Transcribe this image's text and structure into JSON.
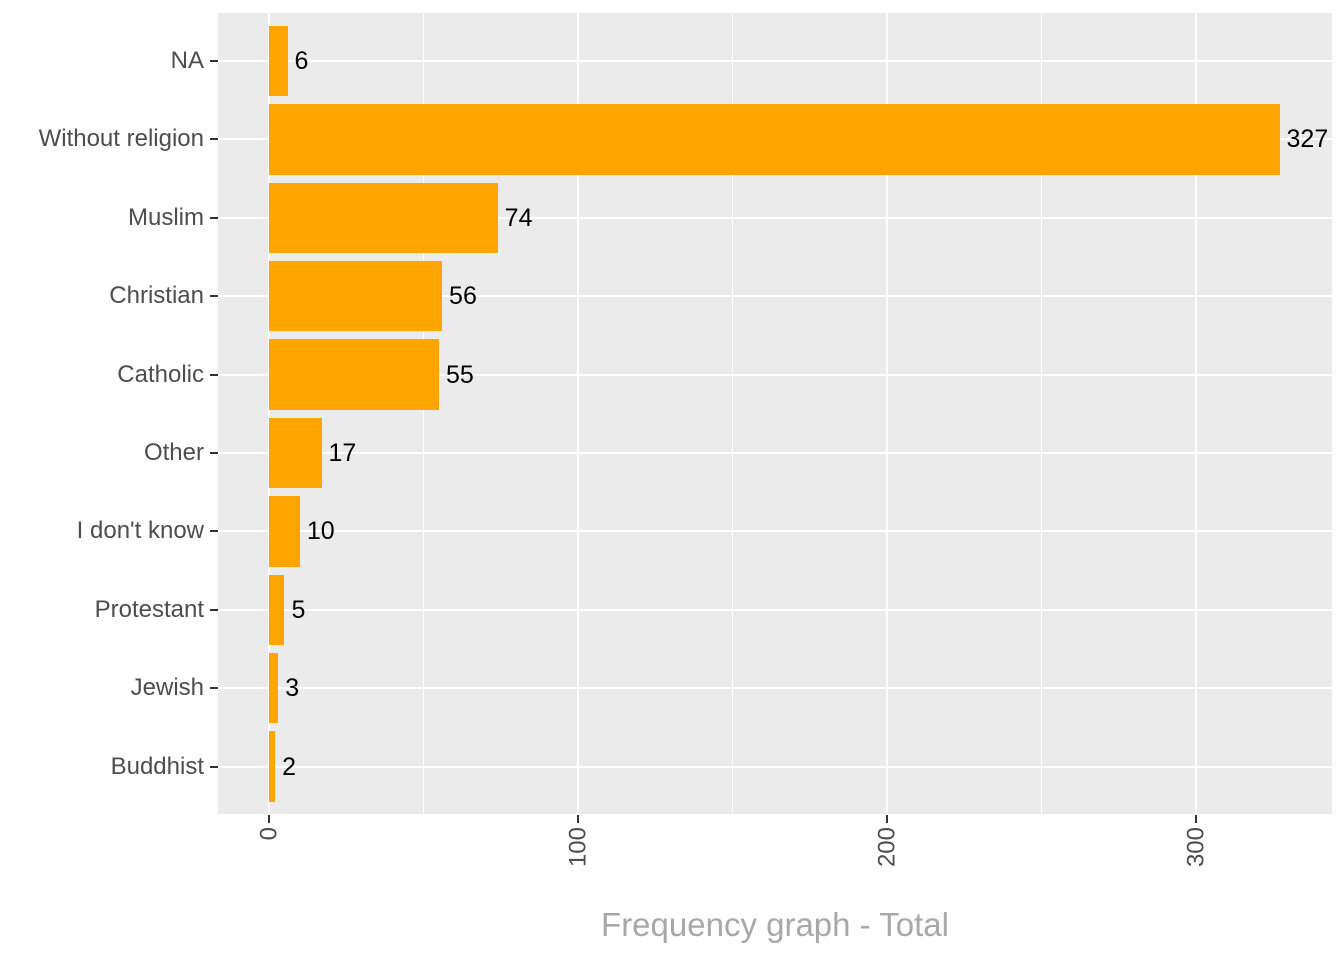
{
  "chart_data": {
    "type": "bar",
    "orientation": "horizontal",
    "title": "",
    "xlabel": "Frequency graph - Total",
    "ylabel": "",
    "categories": [
      "NA",
      "Without religion",
      "Muslim",
      "Christian",
      "Catholic",
      "Other",
      "I don't know",
      "Protestant",
      "Jewish",
      "Buddhist"
    ],
    "values": [
      6,
      327,
      74,
      56,
      55,
      17,
      10,
      5,
      3,
      2
    ],
    "show_value_labels": true,
    "x_ticks": [
      0,
      100,
      200,
      300
    ],
    "x_minor_gridlines": [
      50,
      150,
      250
    ],
    "xlim": [
      -16.5,
      343.5
    ],
    "x_tick_label_rotation": 90,
    "grid": "white major and minor gridlines on gray panel",
    "legend": "none",
    "colors": {
      "bar": "#FFA500",
      "panel_background": "#EBEBEB",
      "gridline": "#FFFFFF",
      "axis_text": "#4D4D4D",
      "tick_mark": "#333333",
      "value_label": "#000000",
      "axis_title_text": "#A8A8A8",
      "page_background": "#FFFFFF"
    }
  }
}
